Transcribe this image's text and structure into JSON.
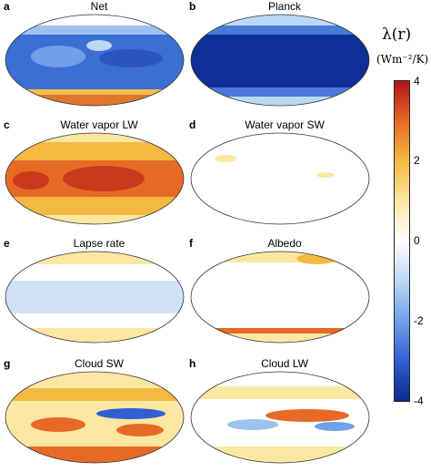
{
  "colorbar": {
    "title": "λ(r)",
    "unit": "(Wm⁻²/K)",
    "ticks": [
      "4",
      "2",
      "0",
      "-2",
      "-4"
    ],
    "vmin": -4,
    "vmax": 4,
    "colors": [
      "#0b2a8c",
      "#2f5fd0",
      "#6fa0e8",
      "#bcd8f6",
      "#ffffff",
      "#fbe7a2",
      "#f5b942",
      "#e66a25",
      "#b3121a"
    ]
  },
  "panels": [
    {
      "letter": "a",
      "title": "Net"
    },
    {
      "letter": "b",
      "title": "Planck"
    },
    {
      "letter": "c",
      "title": "Water vapor LW"
    },
    {
      "letter": "d",
      "title": "Water vapor SW"
    },
    {
      "letter": "e",
      "title": "Lapse rate"
    },
    {
      "letter": "f",
      "title": "Albedo"
    },
    {
      "letter": "g",
      "title": "Cloud SW"
    },
    {
      "letter": "h",
      "title": "Cloud LW"
    }
  ]
}
